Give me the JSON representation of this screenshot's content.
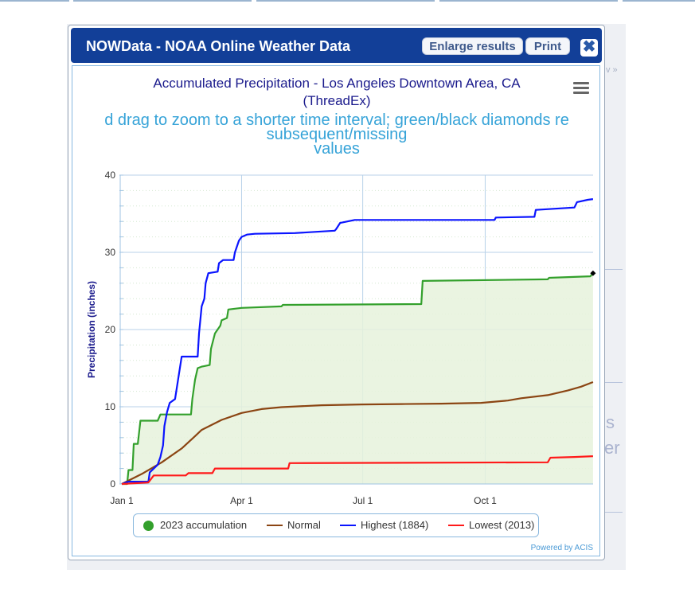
{
  "window": {
    "title": "NOWData - NOAA Online Weather Data",
    "enlarge_label": "Enlarge results",
    "print_label": "Print",
    "close_label": "✖"
  },
  "background": {
    "fragments": [
      "v »",
      "s",
      "er"
    ]
  },
  "credit": "Powered by ACIS",
  "colors": {
    "titlebar": "#123f98",
    "accumulation_2023": "#33a02c",
    "normal": "#8b4513",
    "highest": "#0a14ff",
    "lowest": "#ff1a1a",
    "fill": "#e6f2dc",
    "title_text": "#1a1a8c",
    "subtitle_text": "#36a3d8"
  },
  "chart_data": {
    "type": "line",
    "title": "Accumulated Precipitation - Los Angeles Downtown Area, CA",
    "title_line2": "(ThreadEx)",
    "subtitle_lines": [
      "d drag to zoom to a shorter time interval; green/black diamonds re",
      "subsequent/missing",
      "values"
    ],
    "xlabel": "",
    "ylabel": "Precipitation (inches)",
    "ylim": [
      0,
      40
    ],
    "yticks": [
      0,
      10,
      20,
      30,
      40
    ],
    "xlim": [
      0,
      390
    ],
    "xticks": [
      {
        "label": "Jan 1",
        "day": 0
      },
      {
        "label": "Apr 1",
        "day": 90
      },
      {
        "label": "Jul 1",
        "day": 181
      },
      {
        "label": "Oct 1",
        "day": 273
      }
    ],
    "grid": true,
    "legend_position": "bottom",
    "series": [
      {
        "name": "2023 accumulation",
        "marker": "dot",
        "filled": true,
        "points": [
          [
            0,
            0
          ],
          [
            4,
            0
          ],
          [
            5,
            1.8
          ],
          [
            8,
            1.8
          ],
          [
            9,
            5.2
          ],
          [
            12,
            5.2
          ],
          [
            14,
            8.2
          ],
          [
            27,
            8.2
          ],
          [
            29,
            9.0
          ],
          [
            52,
            9.0
          ],
          [
            53,
            11.0
          ],
          [
            55,
            13.5
          ],
          [
            57,
            15.0
          ],
          [
            60,
            15.2
          ],
          [
            66,
            15.4
          ],
          [
            67,
            17.5
          ],
          [
            70,
            19.5
          ],
          [
            74,
            20.5
          ],
          [
            75,
            21.2
          ],
          [
            79,
            21.5
          ],
          [
            80,
            22.6
          ],
          [
            90,
            22.8
          ],
          [
            120,
            23.0
          ],
          [
            121,
            23.2
          ],
          [
            225,
            23.3
          ],
          [
            226,
            26.3
          ],
          [
            320,
            26.5
          ],
          [
            321,
            26.7
          ],
          [
            352,
            26.9
          ],
          [
            354,
            27.3
          ]
        ],
        "end_marker": {
          "day": 354,
          "value": 27.3,
          "shape": "diamond"
        }
      },
      {
        "name": "Normal",
        "points": [
          [
            0,
            0
          ],
          [
            15,
            1.3
          ],
          [
            30,
            2.8
          ],
          [
            45,
            4.6
          ],
          [
            55,
            6.2
          ],
          [
            60,
            7.0
          ],
          [
            75,
            8.3
          ],
          [
            90,
            9.2
          ],
          [
            105,
            9.7
          ],
          [
            120,
            9.95
          ],
          [
            150,
            10.2
          ],
          [
            180,
            10.3
          ],
          [
            210,
            10.35
          ],
          [
            240,
            10.4
          ],
          [
            270,
            10.5
          ],
          [
            290,
            10.8
          ],
          [
            300,
            11.1
          ],
          [
            320,
            11.5
          ],
          [
            335,
            12.1
          ],
          [
            345,
            12.6
          ],
          [
            354,
            13.2
          ]
        ]
      },
      {
        "name": "Highest (1884)",
        "points": [
          [
            0,
            0
          ],
          [
            5,
            0.3
          ],
          [
            20,
            0.3
          ],
          [
            21,
            1.5
          ],
          [
            27,
            2.5
          ],
          [
            29,
            3.5
          ],
          [
            31,
            5.0
          ],
          [
            32,
            7.5
          ],
          [
            34,
            9.3
          ],
          [
            36,
            10.5
          ],
          [
            40,
            11.0
          ],
          [
            45,
            16.5
          ],
          [
            57,
            16.5
          ],
          [
            58,
            19.5
          ],
          [
            60,
            23.0
          ],
          [
            62,
            24.0
          ],
          [
            63,
            26.0
          ],
          [
            65,
            27.3
          ],
          [
            72,
            27.5
          ],
          [
            73,
            28.6
          ],
          [
            76,
            29.0
          ],
          [
            84,
            29.0
          ],
          [
            85,
            30.0
          ],
          [
            88,
            31.5
          ],
          [
            90,
            32.0
          ],
          [
            94,
            32.3
          ],
          [
            100,
            32.4
          ],
          [
            130,
            32.5
          ],
          [
            160,
            32.8
          ],
          [
            161,
            33.0
          ],
          [
            164,
            33.8
          ],
          [
            175,
            34.2
          ],
          [
            280,
            34.2
          ],
          [
            281,
            34.5
          ],
          [
            310,
            34.6
          ],
          [
            311,
            35.5
          ],
          [
            340,
            35.8
          ],
          [
            342,
            36.5
          ],
          [
            350,
            36.8
          ],
          [
            354,
            36.9
          ]
        ]
      },
      {
        "name": "Lowest (2013)",
        "points": [
          [
            0,
            0
          ],
          [
            20,
            0.2
          ],
          [
            24,
            1.1
          ],
          [
            48,
            1.1
          ],
          [
            50,
            1.4
          ],
          [
            68,
            1.4
          ],
          [
            70,
            2.0
          ],
          [
            125,
            2.0
          ],
          [
            126,
            2.7
          ],
          [
            320,
            2.8
          ],
          [
            322,
            3.4
          ],
          [
            340,
            3.5
          ],
          [
            354,
            3.6
          ]
        ]
      }
    ]
  }
}
